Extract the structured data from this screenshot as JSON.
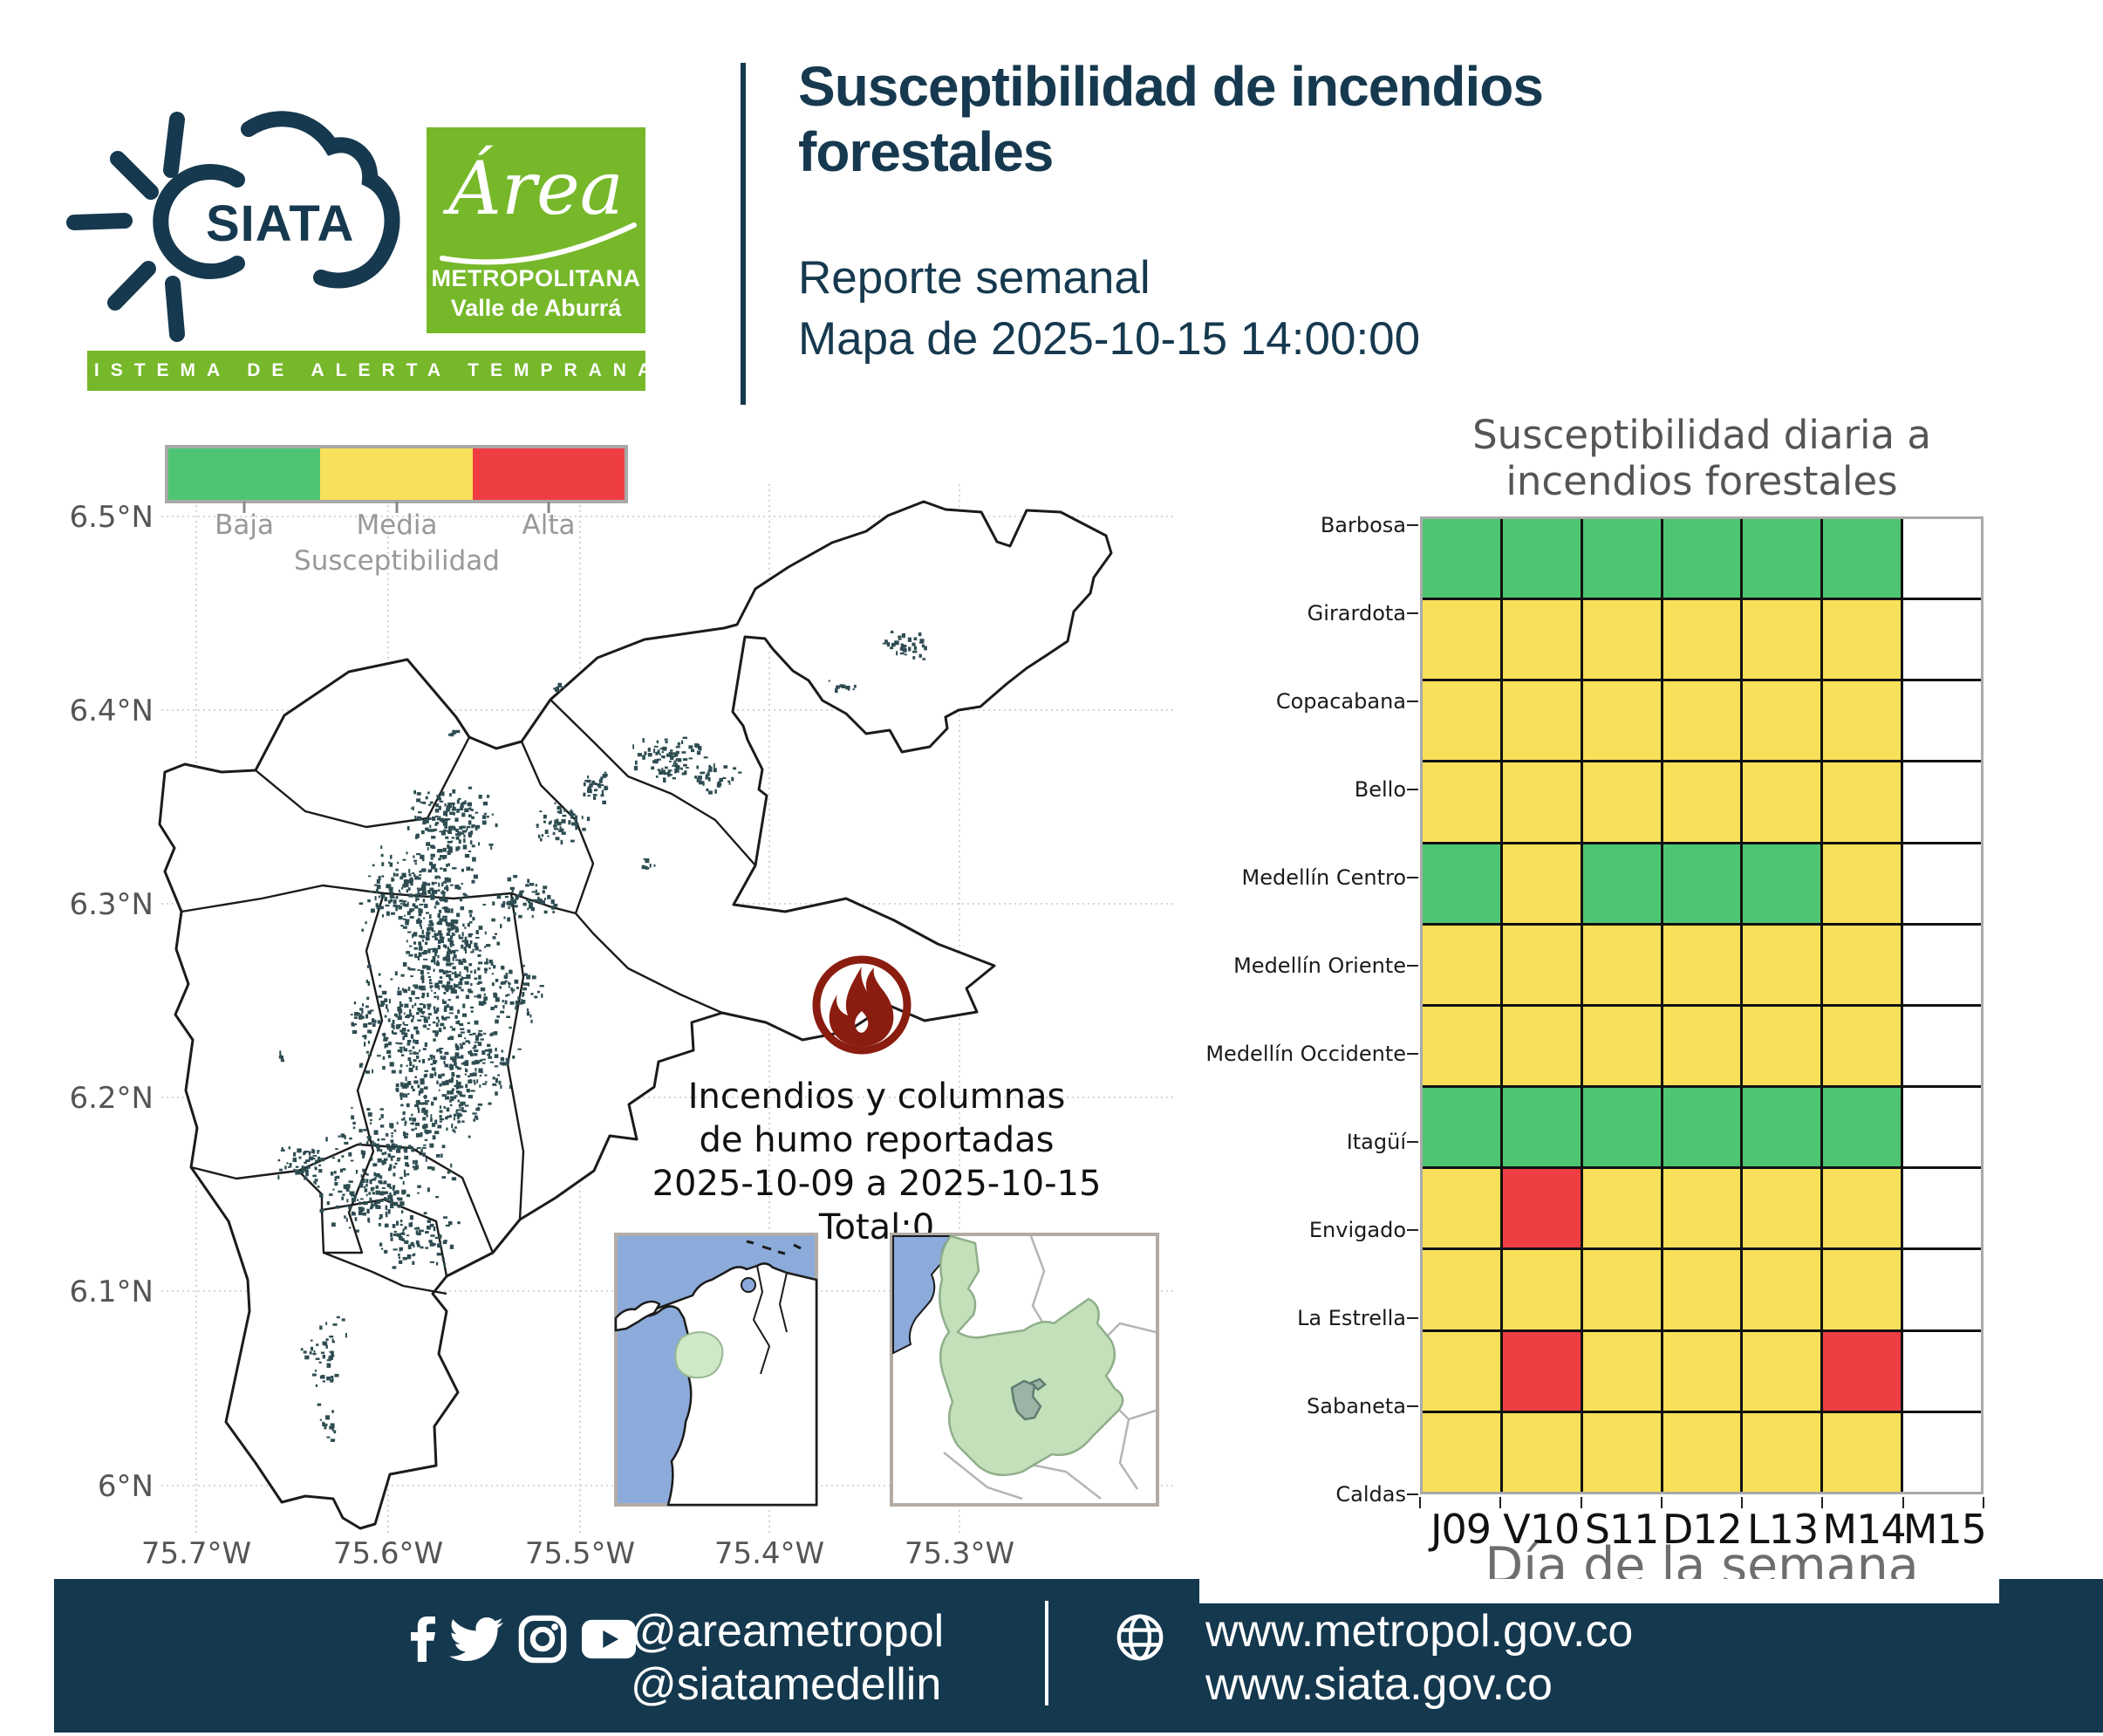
{
  "header": {
    "siata_logo_text": "SIATA",
    "siata_tagline": "SISTEMA DE ALERTA TEMPRANA",
    "area_logo": {
      "script": "Área",
      "line1": "METROPOLITANA",
      "line2": "Valle de Aburrá"
    },
    "title_line1": "Susceptibilidad de incendios",
    "title_line2": "forestales",
    "subtitle": "Reporte semanal",
    "map_date": "Mapa de 2025-10-15 14:00:00"
  },
  "map": {
    "legend": {
      "labels": [
        "Baja",
        "Media",
        "Alta"
      ],
      "title": "Susceptibilidad",
      "colors": [
        "#4ec572",
        "#f9e05a",
        "#ef3e43"
      ]
    },
    "y_ticks": [
      "6.5°N",
      "6.4°N",
      "6.3°N",
      "6.2°N",
      "6.1°N",
      "6°N"
    ],
    "x_ticks": [
      "75.7°W",
      "75.6°W",
      "75.5°W",
      "75.4°W",
      "75.3°W"
    ],
    "annotation_lines": [
      "Incendios y columnas",
      "de humo reportadas",
      "2025-10-09 a 2025-10-15",
      "Total:0"
    ],
    "fire_icon_color": "#8a1d10",
    "speckle_color": "#2e4d52"
  },
  "chart_data": {
    "type": "heatmap",
    "title": "Susceptibilidad diaria a incendios forestales",
    "title_lines": [
      "Susceptibilidad diaria a",
      "incendios forestales"
    ],
    "xlabel": "Día de la semana",
    "columns": [
      "J09",
      "V10",
      "S11",
      "D12",
      "L13",
      "M14",
      "M15"
    ],
    "rows": [
      "Barbosa",
      "Girardota",
      "Copacabana",
      "Bello",
      "Medellín Centro",
      "Medellín Oriente",
      "Medellín Occidente",
      "Itagüí",
      "Envigado",
      "La Estrella",
      "Sabaneta",
      "Caldas"
    ],
    "levels": {
      "Baja": "#4ec572",
      "Media": "#f9e05a",
      "Alta": "#ef3e43",
      "empty": "#ffffff"
    },
    "values": [
      [
        "Baja",
        "Baja",
        "Baja",
        "Baja",
        "Baja",
        "Baja",
        null
      ],
      [
        "Media",
        "Media",
        "Media",
        "Media",
        "Media",
        "Media",
        null
      ],
      [
        "Media",
        "Media",
        "Media",
        "Media",
        "Media",
        "Media",
        null
      ],
      [
        "Media",
        "Media",
        "Media",
        "Media",
        "Media",
        "Media",
        null
      ],
      [
        "Baja",
        "Media",
        "Baja",
        "Baja",
        "Baja",
        "Media",
        null
      ],
      [
        "Media",
        "Media",
        "Media",
        "Media",
        "Media",
        "Media",
        null
      ],
      [
        "Media",
        "Media",
        "Media",
        "Media",
        "Media",
        "Media",
        null
      ],
      [
        "Baja",
        "Baja",
        "Baja",
        "Baja",
        "Baja",
        "Baja",
        null
      ],
      [
        "Media",
        "Alta",
        "Media",
        "Media",
        "Media",
        "Media",
        null
      ],
      [
        "Media",
        "Media",
        "Media",
        "Media",
        "Media",
        "Media",
        null
      ],
      [
        "Media",
        "Alta",
        "Media",
        "Media",
        "Media",
        "Alta",
        null
      ],
      [
        "Media",
        "Media",
        "Media",
        "Media",
        "Media",
        "Media",
        null
      ]
    ],
    "legend_position": "map-top-left",
    "grid": true
  },
  "footer": {
    "handles": [
      "@areametropol",
      "@siatamedellin"
    ],
    "websites": [
      "www.metropol.gov.co",
      "www.siata.gov.co"
    ],
    "icons": [
      "facebook-icon",
      "twitter-icon",
      "instagram-icon",
      "youtube-icon",
      "globe-icon"
    ]
  }
}
